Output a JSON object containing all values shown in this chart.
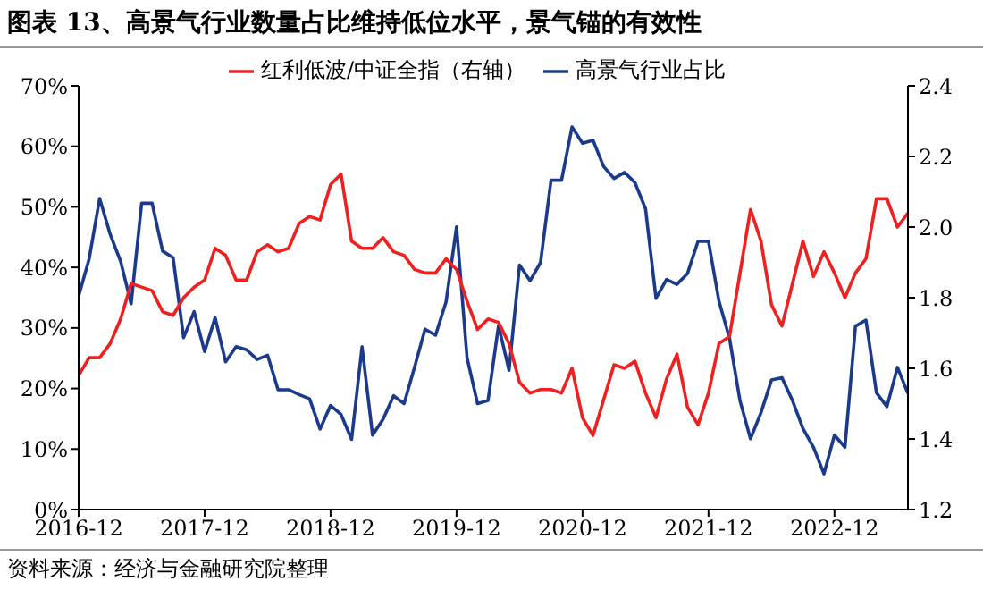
{
  "chart_data": {
    "type": "line",
    "title": "图表 13、高景气行业数量占比维持低位水平，景气锚的有效性",
    "x": [
      "2016-12",
      "2017-01",
      "2017-02",
      "2017-03",
      "2017-04",
      "2017-05",
      "2017-06",
      "2017-07",
      "2017-08",
      "2017-09",
      "2017-10",
      "2017-11",
      "2017-12",
      "2018-01",
      "2018-02",
      "2018-03",
      "2018-04",
      "2018-05",
      "2018-06",
      "2018-07",
      "2018-08",
      "2018-09",
      "2018-10",
      "2018-11",
      "2018-12",
      "2019-01",
      "2019-02",
      "2019-03",
      "2019-04",
      "2019-05",
      "2019-06",
      "2019-07",
      "2019-08",
      "2019-09",
      "2019-10",
      "2019-11",
      "2019-12",
      "2020-01",
      "2020-02",
      "2020-03",
      "2020-04",
      "2020-05",
      "2020-06",
      "2020-07",
      "2020-08",
      "2020-09",
      "2020-10",
      "2020-11",
      "2020-12",
      "2021-01",
      "2021-02",
      "2021-03",
      "2021-04",
      "2021-05",
      "2021-06",
      "2021-07",
      "2021-08",
      "2021-09",
      "2021-10",
      "2021-11",
      "2021-12",
      "2022-01",
      "2022-02",
      "2022-03",
      "2022-04",
      "2022-05",
      "2022-06",
      "2022-07",
      "2022-08",
      "2022-09",
      "2022-10",
      "2022-11",
      "2022-12",
      "2023-01",
      "2023-02",
      "2023-03",
      "2023-04",
      "2023-05",
      "2023-06",
      "2023-07"
    ],
    "series": [
      {
        "name": "高景气行业占比",
        "color": "#1b3a8c",
        "values": [
          35.3,
          41.4,
          51.4,
          45.5,
          41,
          34,
          50.6,
          50.6,
          42.7,
          41.6,
          28.4,
          32.7,
          26.1,
          31.7,
          24.4,
          26.9,
          26.4,
          24.8,
          25.5,
          19.8,
          19.8,
          19,
          18.3,
          13.3,
          17.2,
          15.7,
          11.6,
          26.9,
          12.3,
          14.9,
          18.8,
          17.5,
          23.5,
          29.8,
          28.8,
          34.3,
          46.7,
          25.1,
          17.5,
          18,
          30.4,
          23,
          40.4,
          37.8,
          40.8,
          54.4,
          54.4,
          63.2,
          60.5,
          61,
          56.7,
          54.7,
          55.7,
          54,
          49.7,
          34.9,
          38,
          37.2,
          39,
          44.3,
          44.3,
          34.4,
          28.3,
          18,
          11.7,
          16,
          21.4,
          21.8,
          18,
          13.4,
          10.3,
          5.9,
          12.3,
          10.3,
          30.3,
          31.3,
          19.3,
          17,
          23.5,
          19.2
        ]
      },
      {
        "name": "红利低波/中证全指（右轴）",
        "color": "#f02020",
        "axis": "y2",
        "values": [
          1.58,
          1.63,
          1.63,
          1.67,
          1.74,
          1.84,
          1.83,
          1.82,
          1.76,
          1.75,
          1.8,
          1.83,
          1.85,
          1.94,
          1.92,
          1.85,
          1.85,
          1.93,
          1.95,
          1.93,
          1.94,
          2.01,
          2.03,
          2.02,
          2.12,
          2.15,
          1.96,
          1.94,
          1.94,
          1.97,
          1.93,
          1.92,
          1.88,
          1.87,
          1.87,
          1.91,
          1.88,
          1.79,
          1.71,
          1.74,
          1.73,
          1.67,
          1.56,
          1.53,
          1.54,
          1.54,
          1.53,
          1.6,
          1.46,
          1.41,
          1.51,
          1.61,
          1.6,
          1.62,
          1.53,
          1.46,
          1.57,
          1.64,
          1.49,
          1.44,
          1.53,
          1.67,
          1.69,
          1.87,
          2.05,
          1.96,
          1.78,
          1.72,
          1.84,
          1.96,
          1.86,
          1.93,
          1.87,
          1.8,
          1.87,
          1.91,
          2.08,
          2.08,
          2,
          2.04
        ]
      }
    ],
    "xlim": [
      "2016-12",
      "2023-07"
    ],
    "xticks": [
      "2016-12",
      "2017-12",
      "2018-12",
      "2019-12",
      "2020-12",
      "2021-12",
      "2022-12"
    ],
    "ylim": [
      0,
      70
    ],
    "yticks": [
      {
        "value": 0,
        "label": "0%"
      },
      {
        "value": 10,
        "label": "10%"
      },
      {
        "value": 20,
        "label": "20%"
      },
      {
        "value": 30,
        "label": "30%"
      },
      {
        "value": 40,
        "label": "40%"
      },
      {
        "value": 50,
        "label": "50%"
      },
      {
        "value": 60,
        "label": "60%"
      },
      {
        "value": 70,
        "label": "70%"
      }
    ],
    "y2lim": [
      1.2,
      2.4
    ],
    "y2ticks": [
      {
        "value": 1.2,
        "label": "1.2"
      },
      {
        "value": 1.4,
        "label": "1.4"
      },
      {
        "value": 1.6,
        "label": "1.6"
      },
      {
        "value": 1.8,
        "label": "1.8"
      },
      {
        "value": 2,
        "label": "2.0"
      },
      {
        "value": 2.2,
        "label": "2.2"
      },
      {
        "value": 2.4,
        "label": "2.4"
      }
    ],
    "legend": "top",
    "annotations": [
      "资料来源：经济与金融研究院整理"
    ]
  }
}
